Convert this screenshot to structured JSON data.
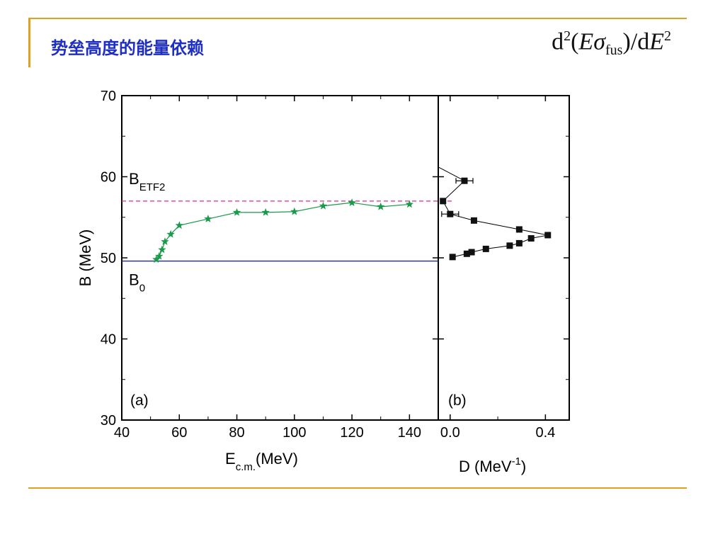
{
  "slide": {
    "title": "势垒高度的能量依赖",
    "formula_prefix": "d",
    "formula_exp": "2",
    "formula_E": "E",
    "formula_sigma": "σ",
    "formula_sub": "fus",
    "formula_mid": ")/d",
    "formula_E2": "E",
    "formula_exp2": "2"
  },
  "colors": {
    "accent_rule": "#e0a020",
    "title": "#1f2fc4",
    "star_series": "#1a9a4a",
    "b0_line": "#1f2a7a",
    "betf2_line": "#e0288a"
  },
  "chart_data": [
    {
      "type": "line",
      "panel_label": "(a)",
      "xlabel": "E",
      "xlabel_sub": "c.m.",
      "xlabel_unit": "(MeV)",
      "ylabel": "B (MeV)",
      "xlim": [
        40,
        150
      ],
      "ylim": [
        30,
        70
      ],
      "xticks": [
        40,
        60,
        80,
        100,
        120,
        140
      ],
      "yticks": [
        30,
        40,
        50,
        60,
        70
      ],
      "series": [
        {
          "marker": "star",
          "x": [
            52,
            53,
            54,
            55,
            57,
            60,
            70,
            80,
            90,
            100,
            110,
            120,
            130,
            140
          ],
          "y": [
            49.8,
            50.2,
            51.0,
            52.0,
            52.9,
            54.0,
            54.8,
            55.6,
            55.6,
            55.7,
            56.4,
            56.8,
            56.3,
            56.6
          ]
        }
      ],
      "hlines": [
        {
          "label": "B",
          "label_sub": "0",
          "y": 49.6,
          "style": "solid"
        },
        {
          "label": "B",
          "label_sub": "ETF2",
          "y": 57.0,
          "style": "dashed"
        }
      ],
      "grid": false
    },
    {
      "type": "line",
      "panel_label": "(b)",
      "xlabel": "D (MeV",
      "xlabel_sup": "-1",
      "xlabel_end": ")",
      "xlim": [
        -0.05,
        0.5
      ],
      "ylim": [
        30,
        70
      ],
      "xticks": [
        0.0,
        0.4
      ],
      "xtick_labels": [
        "0.0",
        "0.4"
      ],
      "series": [
        {
          "marker": "square",
          "points": [
            {
              "x": -0.05,
              "y": 61.2
            },
            {
              "x": 0.06,
              "y": 59.5
            },
            {
              "x": -0.03,
              "y": 57.0
            },
            {
              "x": 0.0,
              "y": 55.4
            },
            {
              "x": 0.1,
              "y": 54.6
            },
            {
              "x": 0.29,
              "y": 53.5
            },
            {
              "x": 0.41,
              "y": 52.8
            },
            {
              "x": 0.34,
              "y": 52.4
            },
            {
              "x": 0.29,
              "y": 51.8
            },
            {
              "x": 0.25,
              "y": 51.5
            },
            {
              "x": 0.15,
              "y": 51.1
            },
            {
              "x": 0.09,
              "y": 50.7
            },
            {
              "x": 0.07,
              "y": 50.5
            },
            {
              "x": 0.01,
              "y": 50.1
            }
          ]
        }
      ],
      "errorbars_at": [
        59.5,
        55.4
      ],
      "grid": false
    }
  ]
}
